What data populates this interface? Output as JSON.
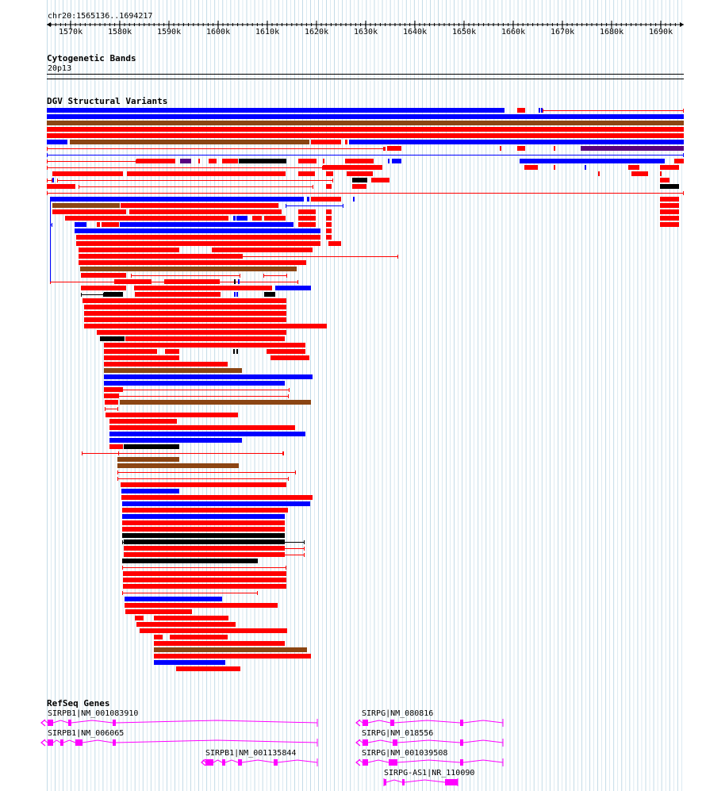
{
  "ruler": {
    "range_label": "chr20:1565136..1694217",
    "tick_labels": [
      "1570k",
      "1580k",
      "1590k",
      "1600k",
      "1610k",
      "1620k",
      "1630k",
      "1640k",
      "1650k",
      "1660k",
      "1670k",
      "1680k",
      "1690k"
    ]
  },
  "cytoband": {
    "title": "Cytogenetic Bands",
    "band": "20p13"
  },
  "dgv": {
    "title": "DGV Structural Variants"
  },
  "refseq": {
    "title": "RefSeq Genes",
    "genes": [
      {
        "label": "SIRPB1|NM_001083910"
      },
      {
        "label": "SIRPB1|NM_006065"
      },
      {
        "label": "SIRPB1|NM_001135844"
      },
      {
        "label": "SIRPG|NM_080816"
      },
      {
        "label": "SIRPG|NM_018556"
      },
      {
        "label": "SIRPG|NM_001039508"
      },
      {
        "label": "SIRPG-AS1|NR_110090"
      }
    ]
  },
  "colors": {
    "loss": "#ff0000",
    "gain": "#0000ff",
    "inversion": "#8b4513",
    "complex": "#000000",
    "other": "#5a007f",
    "gene": "#ff00ff",
    "grid": "#aaccdd"
  }
}
